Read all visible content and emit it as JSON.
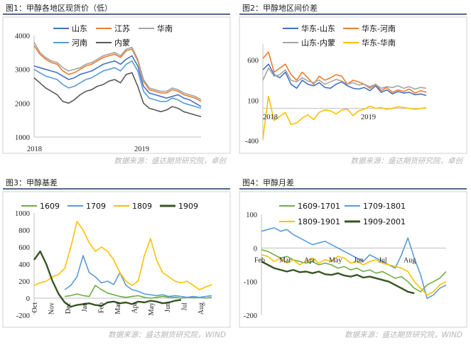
{
  "colors": {
    "blue": "#4472c4",
    "orange": "#ed7d31",
    "gray": "#a5a5a5",
    "yellow": "#ffc000",
    "lightblue": "#5b9bd5",
    "darkgray": "#595959",
    "green": "#70ad47",
    "darkgreen": "#375623",
    "axis": "#d9d9d9"
  },
  "chart_data": [
    {
      "type": "line",
      "title": "图1：甲醇各地区现货价（低）",
      "source": "数据来源：盛达期货研究院，卓创",
      "x_labels": [
        "2018",
        "2019"
      ],
      "ylim": [
        1000,
        4000
      ],
      "yticks": [
        "1000",
        "2000",
        "3000",
        "4000"
      ],
      "legend": "top",
      "series": [
        {
          "name": "山东",
          "color": "#4472c4",
          "values": [
            3100,
            3050,
            3000,
            2950,
            2900,
            2800,
            2700,
            2750,
            2850,
            2900,
            2950,
            3050,
            3150,
            3200,
            3250,
            3150,
            3300,
            3400,
            3100,
            2500,
            2300,
            2250,
            2200,
            2150,
            2200,
            2250,
            2150,
            2100,
            2000,
            1900
          ]
        },
        {
          "name": "江苏",
          "color": "#ed7d31",
          "values": [
            3700,
            3450,
            3300,
            3200,
            3150,
            2950,
            2850,
            2900,
            3000,
            3100,
            3150,
            3250,
            3350,
            3400,
            3450,
            3350,
            3550,
            3600,
            3250,
            2650,
            2400,
            2350,
            2300,
            2300,
            2400,
            2350,
            2250,
            2200,
            2150,
            2050
          ]
        },
        {
          "name": "华南",
          "color": "#a5a5a5",
          "values": [
            3800,
            3500,
            3350,
            3250,
            3200,
            3050,
            2950,
            3000,
            3050,
            3150,
            3200,
            3300,
            3400,
            3450,
            3500,
            3400,
            3600,
            3650,
            3300,
            2700,
            2450,
            2400,
            2350,
            2350,
            2450,
            2400,
            2300,
            2250,
            2200,
            2100
          ]
        },
        {
          "name": "河南",
          "color": "#5b9bd5",
          "values": [
            3000,
            2900,
            2800,
            2750,
            2700,
            2550,
            2450,
            2500,
            2600,
            2700,
            2750,
            2850,
            2950,
            3000,
            3050,
            2950,
            3150,
            3250,
            2950,
            2350,
            2150,
            2100,
            2050,
            2050,
            2150,
            2100,
            2000,
            1950,
            1900,
            1850
          ]
        },
        {
          "name": "内蒙",
          "color": "#595959",
          "values": [
            2750,
            2600,
            2450,
            2350,
            2250,
            2050,
            2000,
            2100,
            2250,
            2350,
            2400,
            2500,
            2550,
            2650,
            2700,
            2600,
            2850,
            2900,
            2500,
            2000,
            1850,
            1800,
            1750,
            1800,
            1900,
            1850,
            1750,
            1700,
            1650,
            1600
          ]
        }
      ]
    },
    {
      "type": "line",
      "title": "图2：甲醇地区间价差",
      "source": "数据来源：盛达期货研究院，卓创",
      "x_labels": [
        "2018",
        "2019"
      ],
      "ylim": [
        -400,
        800
      ],
      "yticks": [
        "-400",
        "100",
        "600"
      ],
      "legend": "top",
      "series": [
        {
          "name": "华东-山东",
          "color": "#4472c4",
          "values": [
            480,
            550,
            420,
            380,
            450,
            300,
            250,
            350,
            300,
            280,
            320,
            260,
            250,
            300,
            330,
            280,
            250,
            240,
            260,
            220,
            280,
            200,
            230,
            180,
            210,
            190,
            200,
            170,
            180,
            160
          ]
        },
        {
          "name": "华东-河南",
          "color": "#ed7d31",
          "values": [
            620,
            700,
            450,
            500,
            550,
            420,
            350,
            450,
            380,
            300,
            400,
            350,
            380,
            420,
            400,
            300,
            350,
            330,
            300,
            250,
            300,
            220,
            260,
            200,
            230,
            210,
            240,
            190,
            220,
            200
          ]
        },
        {
          "name": "山东-内蒙",
          "color": "#a5a5a5",
          "values": [
            350,
            500,
            400,
            420,
            480,
            350,
            330,
            380,
            340,
            320,
            350,
            300,
            330,
            360,
            340,
            300,
            320,
            290,
            300,
            270,
            300,
            250,
            270,
            260,
            280,
            250,
            270,
            240,
            260,
            250
          ]
        },
        {
          "name": "华东-华南",
          "color": "#ffc000",
          "values": [
            -380,
            150,
            -150,
            -100,
            -50,
            -200,
            -180,
            -120,
            -80,
            -140,
            -50,
            -20,
            -30,
            -70,
            -20,
            -10,
            -90,
            -30,
            -10,
            30,
            0,
            10,
            -10,
            0,
            20,
            10,
            0,
            -10,
            0,
            10
          ]
        }
      ]
    },
    {
      "type": "line",
      "title": "图3：甲醇基差",
      "source": "数据来源：盛达期货研究院，WIND",
      "x_labels": [
        "Oct",
        "Nov",
        "Dec",
        "Jan",
        "Feb",
        "Mar",
        "Apr",
        "May",
        "Jun",
        "Jul",
        "Aug"
      ],
      "ylim": [
        -200,
        1000
      ],
      "yticks": [
        "-200",
        "0",
        "200",
        "400",
        "600",
        "800",
        "1000"
      ],
      "legend": "top",
      "series": [
        {
          "name": "1609",
          "color": "#70ad47",
          "values": [
            null,
            null,
            null,
            null,
            null,
            20,
            30,
            50,
            30,
            20,
            150,
            100,
            60,
            40,
            20,
            10,
            20,
            30,
            10,
            0,
            10,
            20,
            10,
            10,
            0,
            10,
            5,
            10,
            0,
            10
          ]
        },
        {
          "name": "1709",
          "color": "#5b9bd5",
          "values": [
            null,
            null,
            null,
            null,
            null,
            100,
            150,
            250,
            500,
            300,
            250,
            180,
            200,
            160,
            300,
            150,
            100,
            80,
            50,
            40,
            30,
            40,
            20,
            30,
            20,
            10,
            20,
            10,
            20,
            30
          ]
        },
        {
          "name": "1809",
          "color": "#ffc000",
          "values": [
            150,
            180,
            200,
            250,
            280,
            350,
            600,
            900,
            800,
            650,
            550,
            600,
            550,
            450,
            300,
            200,
            150,
            200,
            500,
            700,
            450,
            300,
            250,
            200,
            180,
            200,
            150,
            100,
            130,
            160
          ]
        },
        {
          "name": "1909",
          "color": "#375623",
          "values": [
            450,
            550,
            400,
            200,
            50,
            -50,
            -100,
            -80,
            -70,
            -60,
            -80,
            -90,
            -50,
            -40,
            -60,
            -50,
            -70,
            -40,
            -50,
            -30,
            -40,
            -60,
            -50,
            -30,
            -20,
            null,
            null,
            null,
            null,
            null
          ]
        }
      ]
    },
    {
      "type": "line",
      "title": "图4：甲醇月差",
      "source": "数据来源：盛达期货研究院，WIND",
      "x_labels": [
        "Feb",
        "Mar",
        "Apr",
        "May",
        "Jun",
        "Jul",
        "Aug"
      ],
      "ylim": [
        -200,
        100
      ],
      "yticks": [
        "-200",
        "-100",
        "0",
        "100"
      ],
      "legend": "top",
      "series": [
        {
          "name": "1609-1701",
          "color": "#70ad47",
          "values": [
            -5,
            -10,
            -20,
            -30,
            -25,
            -35,
            -40,
            -45,
            -40,
            -50,
            -45,
            -50,
            -60,
            -55,
            -65,
            -60,
            -70,
            -65,
            -75,
            -70,
            -80,
            -90,
            -85,
            -100,
            -120,
            -130,
            -110,
            -100,
            -90,
            -70
          ]
        },
        {
          "name": "1709-1801",
          "color": "#5b9bd5",
          "values": [
            50,
            55,
            60,
            50,
            55,
            40,
            30,
            20,
            10,
            15,
            20,
            10,
            0,
            -10,
            -20,
            -30,
            -40,
            -20,
            -30,
            -40,
            -50,
            -60,
            -20,
            30,
            -30,
            -80,
            -150,
            -140,
            -120,
            -110
          ]
        },
        {
          "name": "1809-1901",
          "color": "#ffc000",
          "values": [
            -20,
            -25,
            -40,
            -30,
            -45,
            -35,
            -50,
            -40,
            -30,
            -45,
            -35,
            -40,
            -25,
            -30,
            -45,
            -40,
            -50,
            -40,
            -35,
            -45,
            -50,
            -55,
            -60,
            -70,
            -100,
            -120,
            -140,
            -130,
            -110,
            -100
          ]
        },
        {
          "name": "1909-2001",
          "color": "#375623",
          "values": [
            -40,
            -50,
            -60,
            -65,
            -70,
            -65,
            -72,
            -70,
            -75,
            -70,
            -78,
            -80,
            -75,
            -82,
            -85,
            -80,
            -88,
            -85,
            -90,
            -95,
            -100,
            -110,
            -120,
            -130,
            -135,
            null,
            null,
            null,
            null,
            null
          ]
        }
      ]
    }
  ]
}
